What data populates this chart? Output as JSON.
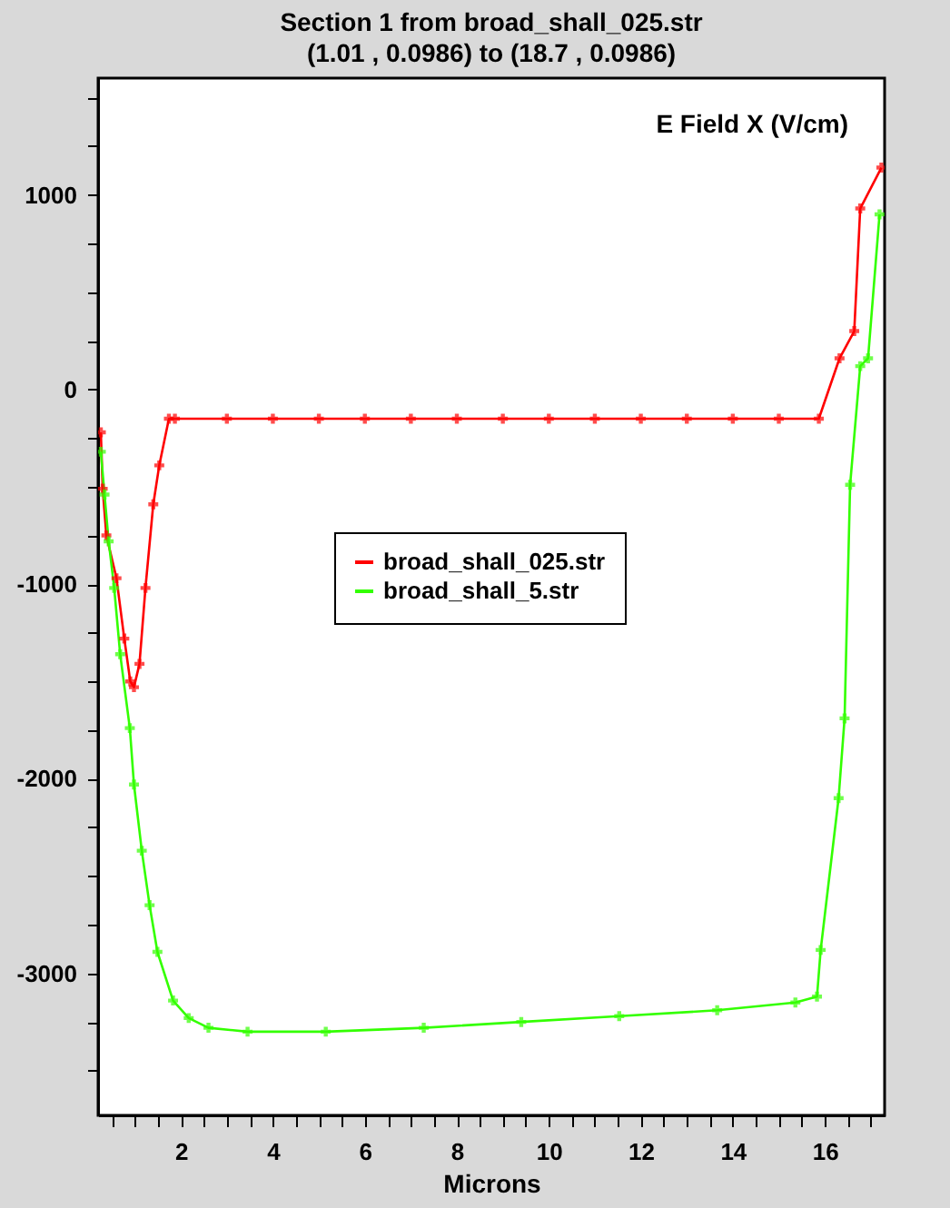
{
  "chart_data": {
    "type": "line",
    "title": "Section 1 from broad_shall_025.str",
    "subtitle": "(1.01 , 0.0986) to (18.7 , 0.0986)",
    "xlabel": "Microns",
    "ylabel": "E Field X (V/cm)",
    "xlim": [
      0.2,
      17.3
    ],
    "ylim": [
      -3730,
      1600
    ],
    "xticks": [
      {
        "value": 0.5,
        "label": null
      },
      {
        "value": 1,
        "label": null
      },
      {
        "value": 1.5,
        "label": null
      },
      2,
      {
        "value": 2.5,
        "label": null
      },
      {
        "value": 3,
        "label": null
      },
      {
        "value": 3.5,
        "label": null
      },
      4,
      {
        "value": 4.5,
        "label": null
      },
      {
        "value": 5,
        "label": null
      },
      {
        "value": 5.5,
        "label": null
      },
      6,
      {
        "value": 6.5,
        "label": null
      },
      {
        "value": 7,
        "label": null
      },
      {
        "value": 7.5,
        "label": null
      },
      8,
      {
        "value": 8.5,
        "label": null
      },
      {
        "value": 9,
        "label": null
      },
      {
        "value": 9.5,
        "label": null
      },
      10,
      {
        "value": 10.5,
        "label": null
      },
      {
        "value": 11,
        "label": null
      },
      {
        "value": 11.5,
        "label": null
      },
      12,
      {
        "value": 12.5,
        "label": null
      },
      {
        "value": 13,
        "label": null
      },
      {
        "value": 13.5,
        "label": null
      },
      14,
      {
        "value": 14.5,
        "label": null
      },
      {
        "value": 15,
        "label": null
      },
      {
        "value": 15.5,
        "label": null
      },
      16,
      {
        "value": 16.5,
        "label": null
      },
      {
        "value": 17,
        "label": null
      }
    ],
    "yticks": [
      {
        "value": -3500,
        "label": null
      },
      {
        "value": -3250,
        "label": null
      },
      -3000,
      {
        "value": -2750,
        "label": null
      },
      {
        "value": -2500,
        "label": null
      },
      {
        "value": -2250,
        "label": null
      },
      -2000,
      {
        "value": -1750,
        "label": null
      },
      {
        "value": -1500,
        "label": null
      },
      {
        "value": -1250,
        "label": null
      },
      -1000,
      {
        "value": -750,
        "label": null
      },
      {
        "value": -500,
        "label": null
      },
      {
        "value": -250,
        "label": null
      },
      0,
      {
        "value": 250,
        "label": null
      },
      {
        "value": 500,
        "label": null
      },
      {
        "value": 750,
        "label": null
      },
      1000,
      {
        "value": 1250,
        "label": null
      },
      {
        "value": 1500,
        "label": null
      }
    ],
    "grid": false,
    "legend": "right",
    "marker": "cross",
    "line_style": "solid",
    "series": [
      {
        "name": "broad_shall_025.str",
        "color": "#ff0000",
        "x": [
          0.26,
          0.3,
          0.38,
          0.6,
          0.77,
          0.9,
          0.98,
          1.1,
          1.23,
          1.4,
          1.53,
          1.74,
          1.87,
          3,
          4,
          5,
          6,
          7,
          8,
          9,
          10,
          11,
          12,
          13,
          14,
          15,
          15.87,
          16.32,
          16.64,
          16.77,
          17.23
        ],
        "values": [
          -220,
          -510,
          -750,
          -970,
          -1280,
          -1500,
          -1530,
          -1410,
          -1020,
          -590,
          -390,
          -150,
          -150,
          -150,
          -150,
          -150,
          -150,
          -150,
          -150,
          -150,
          -150,
          -150,
          -150,
          -150,
          -150,
          -150,
          -150,
          160,
          300,
          930,
          1140
        ]
      },
      {
        "name": "broad_shall_5.str",
        "color": "#33ff00",
        "x": [
          0.26,
          0.34,
          0.43,
          0.55,
          0.68,
          0.89,
          0.98,
          1.15,
          1.32,
          1.49,
          1.83,
          2.17,
          2.6,
          3.45,
          5.15,
          7.28,
          9.4,
          11.53,
          13.66,
          15.36,
          15.83,
          15.91,
          16.3,
          16.43,
          16.55,
          16.77,
          16.94,
          17.19
        ],
        "values": [
          -320,
          -540,
          -780,
          -1020,
          -1360,
          -1740,
          -2030,
          -2370,
          -2650,
          -2890,
          -3140,
          -3230,
          -3280,
          -3300,
          -3300,
          -3280,
          -3250,
          -3220,
          -3190,
          -3150,
          -3120,
          -2880,
          -2100,
          -1690,
          -490,
          120,
          160,
          900
        ]
      }
    ]
  }
}
